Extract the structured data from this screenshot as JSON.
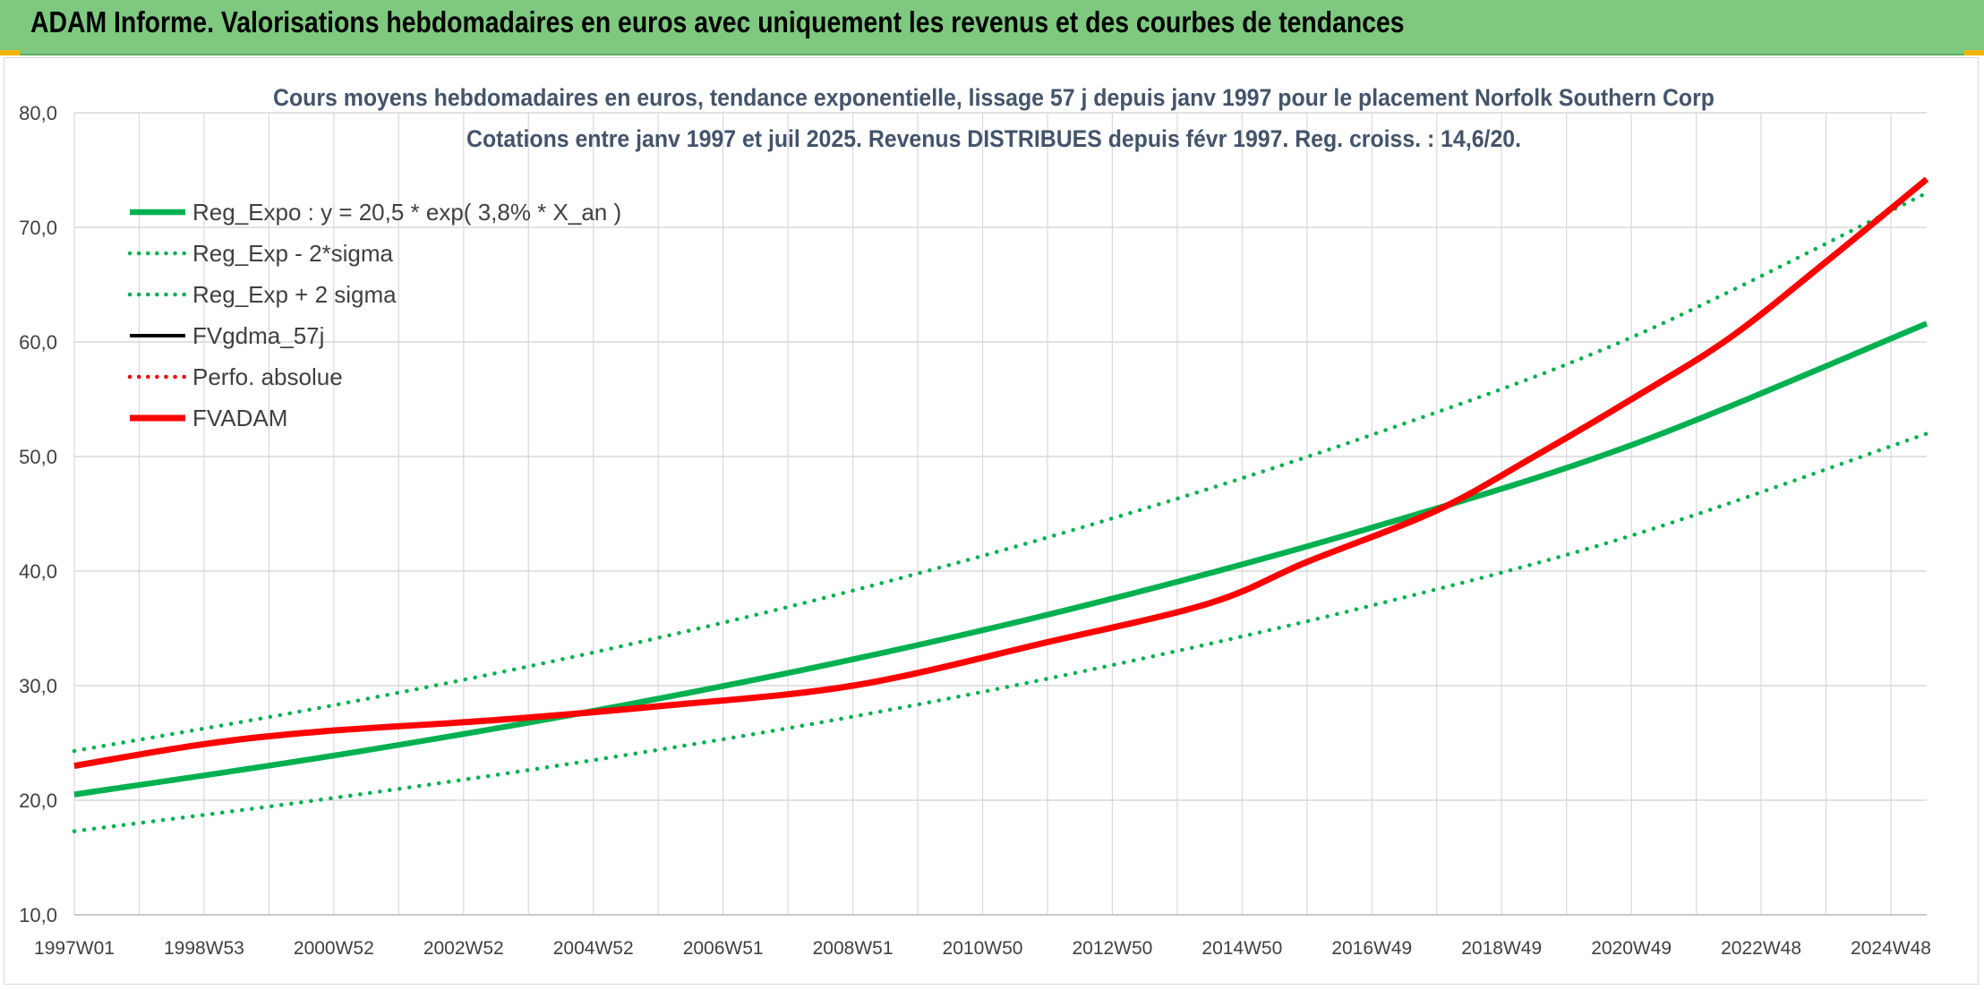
{
  "banner": {
    "title": "ADAM Informe. Valorisations hebdomadaires en euros avec uniquement les revenus et des courbes de tendances"
  },
  "colors": {
    "banner_bg": "#7ec97f",
    "trend_green": "#00b050",
    "adam_red": "#ff0000",
    "gdma_black": "#000000",
    "grid": "#d9d9d9"
  },
  "chart_data": {
    "type": "line",
    "title": "Cours moyens hebdomadaires en euros, tendance exponentielle, lissage 57 j depuis janv 1997 pour le placement Norfolk Southern Corp",
    "subtitle": "Cotations entre janv 1997 et juil 2025. Revenus DISTRIBUES depuis févr 1997. Reg. croiss. : 14,6/20.",
    "xlabel": "",
    "ylabel": "",
    "ylim": [
      10,
      80
    ],
    "y_ticks": [
      "10,0",
      "20,0",
      "30,0",
      "40,0",
      "50,0",
      "60,0",
      "70,0",
      "80,0"
    ],
    "x_range_years": [
      1997.0,
      2025.55
    ],
    "x_tick_labels": [
      "1997W01",
      "1998W53",
      "2000W52",
      "2002W52",
      "2004W52",
      "2006W51",
      "2008W51",
      "2010W50",
      "2012W50",
      "2014W50",
      "2016W49",
      "2018W49",
      "2020W49",
      "2022W48",
      "2024W48"
    ],
    "grid": true,
    "legend_position": "top-left",
    "series": [
      {
        "name": "Reg_Expo : y = 20,5 * exp( 3,8% *  X_an )",
        "style": "solid",
        "color": "#00b050",
        "x": [
          1997.0,
          2001.0,
          2005.0,
          2009.0,
          2013.0,
          2017.0,
          2021.0,
          2025.55
        ],
        "values": [
          20.5,
          23.9,
          27.8,
          32.3,
          37.6,
          43.8,
          51.0,
          61.6
        ]
      },
      {
        "name": "Reg_Exp - 2*sigma",
        "style": "dotted",
        "color": "#00b050",
        "x": [
          1997.0,
          2001.0,
          2005.0,
          2009.0,
          2013.0,
          2017.0,
          2021.0,
          2025.55
        ],
        "values": [
          17.3,
          20.2,
          23.5,
          27.3,
          31.8,
          37.0,
          43.1,
          52.0
        ]
      },
      {
        "name": "Reg_Exp + 2 sigma",
        "style": "dotted",
        "color": "#00b050",
        "x": [
          1997.0,
          2001.0,
          2005.0,
          2009.0,
          2013.0,
          2017.0,
          2021.0,
          2025.55
        ],
        "values": [
          24.3,
          28.3,
          32.9,
          38.3,
          44.6,
          51.9,
          60.4,
          73.0
        ]
      },
      {
        "name": "FVgdma_57j",
        "style": "solid",
        "color": "#000000",
        "x": [
          1997.0,
          1999.0,
          2000.8,
          2003.5,
          2006.0,
          2009.0,
          2012.0,
          2014.5,
          2016.0,
          2018.0,
          2019.5,
          2021.0,
          2022.5,
          2024.0,
          2025.55
        ],
        "values": [
          23.0,
          24.9,
          26.0,
          27.0,
          28.2,
          30.0,
          33.8,
          37.2,
          40.8,
          45.3,
          50.0,
          55.0,
          60.3,
          67.0,
          74.2
        ]
      },
      {
        "name": "Perfo. absolue",
        "style": "dotted",
        "color": "#ff0000",
        "x": [],
        "values": []
      },
      {
        "name": "FVADAM",
        "style": "solid",
        "color": "#ff0000",
        "x": [
          1997.0,
          1999.0,
          2000.8,
          2003.5,
          2006.0,
          2009.0,
          2012.0,
          2014.5,
          2016.0,
          2018.0,
          2019.5,
          2021.0,
          2022.5,
          2024.0,
          2025.55
        ],
        "values": [
          23.0,
          24.9,
          26.0,
          27.0,
          28.2,
          30.0,
          33.8,
          37.2,
          40.8,
          45.3,
          50.0,
          55.0,
          60.3,
          67.0,
          74.2
        ]
      }
    ]
  }
}
